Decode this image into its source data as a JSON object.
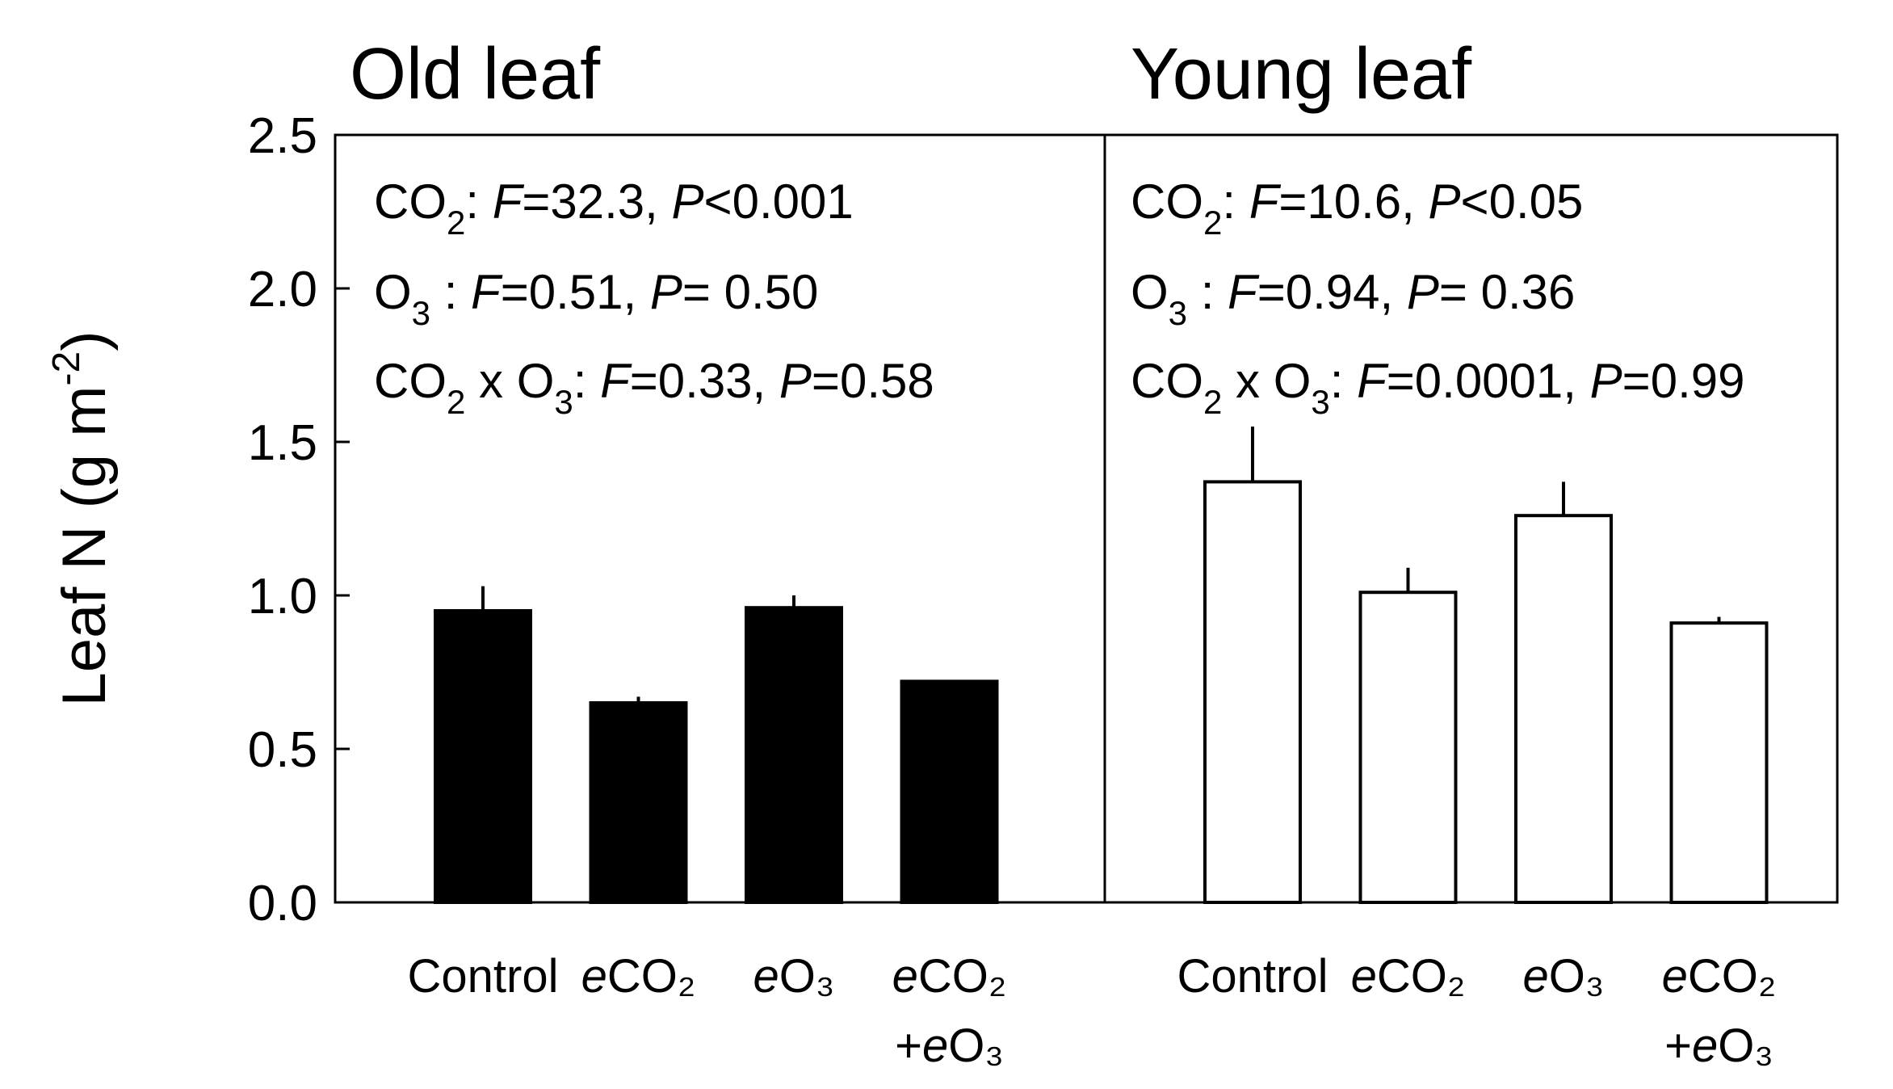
{
  "chart_data": {
    "type": "bar",
    "ylabel": "Leaf N (g m-2)",
    "ylabel_parts": {
      "main": "Leaf N (g m",
      "exp": "-2",
      "close": ")"
    },
    "ylim": [
      0,
      2.5
    ],
    "yticks": [
      "0.0",
      "0.5",
      "1.0",
      "1.5",
      "2.0",
      "2.5"
    ],
    "yticks_values": [
      0,
      0.5,
      1.0,
      1.5,
      2.0,
      2.5
    ],
    "panels": [
      {
        "title": "Old leaf",
        "fill": "#000000",
        "categories": [
          {
            "lines": [
              [
                "Control"
              ]
            ]
          },
          {
            "lines": [
              [
                "e",
                "CO₂"
              ]
            ]
          },
          {
            "lines": [
              [
                "e",
                "O₃"
              ]
            ]
          },
          {
            "lines": [
              [
                "e",
                "CO₂"
              ],
              [
                "+",
                "e",
                "O₃"
              ]
            ]
          }
        ],
        "values": [
          0.95,
          0.65,
          0.96,
          0.72
        ],
        "errors": [
          0.08,
          0.02,
          0.04,
          0.0
        ],
        "stats": [
          [
            {
              "t": "CO"
            },
            {
              "t": "2",
              "sub": true
            },
            {
              "t": ": "
            },
            {
              "t": "F",
              "i": true
            },
            {
              "t": "=32.3, "
            },
            {
              "t": "P",
              "i": true
            },
            {
              "t": "<0.001"
            }
          ],
          [
            {
              "t": "O"
            },
            {
              "t": "3",
              "sub": true
            },
            {
              "t": " : "
            },
            {
              "t": "F",
              "i": true
            },
            {
              "t": "=0.51, "
            },
            {
              "t": "P",
              "i": true
            },
            {
              "t": "= 0.50"
            }
          ],
          [
            {
              "t": "CO"
            },
            {
              "t": "2",
              "sub": true
            },
            {
              "t": " x O"
            },
            {
              "t": "3",
              "sub": true
            },
            {
              "t": ": "
            },
            {
              "t": "F",
              "i": true
            },
            {
              "t": "=0.33, "
            },
            {
              "t": "P",
              "i": true
            },
            {
              "t": "=0.58"
            }
          ]
        ]
      },
      {
        "title": "Young leaf",
        "fill": "#ffffff",
        "categories": [
          {
            "lines": [
              [
                "Control"
              ]
            ]
          },
          {
            "lines": [
              [
                "e",
                "CO₂"
              ]
            ]
          },
          {
            "lines": [
              [
                "e",
                "O₃"
              ]
            ]
          },
          {
            "lines": [
              [
                "e",
                "CO₂"
              ],
              [
                "+",
                "e",
                "O₃"
              ]
            ]
          }
        ],
        "values": [
          1.37,
          1.01,
          1.26,
          0.91
        ],
        "errors": [
          0.18,
          0.08,
          0.11,
          0.02
        ],
        "stats": [
          [
            {
              "t": "CO"
            },
            {
              "t": "2",
              "sub": true
            },
            {
              "t": ": "
            },
            {
              "t": "F",
              "i": true
            },
            {
              "t": "=10.6, "
            },
            {
              "t": "P",
              "i": true
            },
            {
              "t": "<0.05"
            }
          ],
          [
            {
              "t": "O"
            },
            {
              "t": "3",
              "sub": true
            },
            {
              "t": " : "
            },
            {
              "t": "F",
              "i": true
            },
            {
              "t": "=0.94, "
            },
            {
              "t": "P",
              "i": true
            },
            {
              "t": "= 0.36"
            }
          ],
          [
            {
              "t": "CO"
            },
            {
              "t": "2",
              "sub": true
            },
            {
              "t": " x O"
            },
            {
              "t": "3",
              "sub": true
            },
            {
              "t": ": "
            },
            {
              "t": "F",
              "i": true
            },
            {
              "t": "=0.0001, "
            },
            {
              "t": "P",
              "i": true
            },
            {
              "t": "=0.99"
            }
          ]
        ]
      }
    ]
  }
}
